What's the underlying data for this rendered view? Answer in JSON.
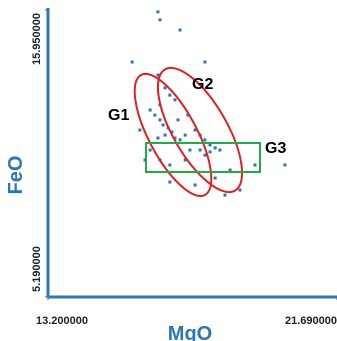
{
  "chart_data": {
    "type": "scatter",
    "x_label": "MgO",
    "y_label": "FeO",
    "color": "#2e75b6",
    "xlim": [
      13.2,
      21.69
    ],
    "ylim": [
      5.19,
      15.95
    ],
    "xticks": [
      {
        "value": 13.2,
        "label": "13.200000"
      },
      {
        "value": 21.69,
        "label": "21.690000"
      }
    ],
    "yticks": [
      {
        "value": 5.19,
        "label": "5.190000"
      },
      {
        "value": 15.95,
        "label": "15.950000"
      }
    ],
    "grid": false,
    "annotations": [
      "G1",
      "G2",
      "G3"
    ],
    "x": [
      16.43,
      16.49,
      17.08,
      15.67,
      16.43,
      17.81,
      16.64,
      16.78,
      16.93,
      16.49,
      16.2,
      16.34,
      16.49,
      16.58,
      16.73,
      16.84,
      16.64,
      16.43,
      16.93,
      17.08,
      17.23,
      17.52,
      17.67,
      17.81,
      17.96,
      18.11,
      18.25,
      17.96,
      17.81,
      17.67,
      17.37,
      17.23,
      16.78,
      16.49,
      16.2,
      16.05,
      18.55,
      18.11,
      17.52,
      16.78,
      18.84,
      19.28,
      18.4,
      20.16,
      15.9,
      17.02,
      17.31
    ],
    "values": [
      15.88,
      15.58,
      15.2,
      14.0,
      13.51,
      14.0,
      13.03,
      12.76,
      12.58,
      12.39,
      12.2,
      12.01,
      11.83,
      11.64,
      11.53,
      11.38,
      11.26,
      11.15,
      11.15,
      11.08,
      11.26,
      11.45,
      11.26,
      11.08,
      10.89,
      10.78,
      10.7,
      10.63,
      10.51,
      10.7,
      10.7,
      10.33,
      10.14,
      10.33,
      10.7,
      10.33,
      9.95,
      9.65,
      9.39,
      9.5,
      9.2,
      10.14,
      9.01,
      10.14,
      11.45,
      11.83,
      12.01
    ]
  }
}
